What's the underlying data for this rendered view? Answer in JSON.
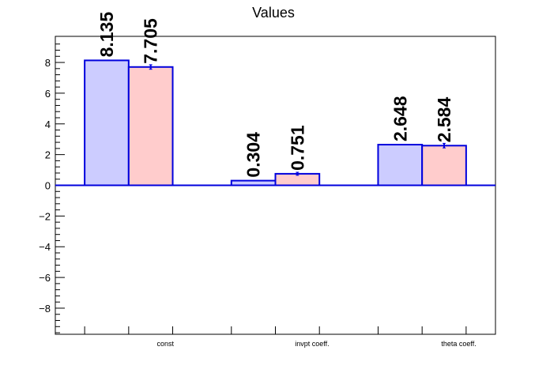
{
  "chart_data": {
    "type": "bar",
    "title": "Values",
    "xlabel": "",
    "ylabel": "",
    "categories": [
      "const",
      "invpt coeff.",
      "theta coeff."
    ],
    "series": [
      {
        "values": [
          8.135,
          0.304,
          2.648
        ],
        "labels": [
          "8.135",
          "0.304",
          "2.648"
        ],
        "errors": [
          0,
          0,
          0
        ],
        "fill": "#ccccff",
        "stroke": "#0000dd"
      },
      {
        "values": [
          7.705,
          0.751,
          2.584
        ],
        "labels": [
          "7.705",
          "0.751",
          "2.584"
        ],
        "errors": [
          0.15,
          0.1,
          0.15
        ],
        "fill": "#ffcccc",
        "stroke": "#0000dd"
      }
    ],
    "ylim": [
      -9.7,
      9.7
    ],
    "yticks": [
      -8,
      -6,
      -4,
      -2,
      0,
      2,
      4,
      6,
      8
    ],
    "ytick_labels": [
      "−8",
      "−6",
      "−4",
      "−2",
      "0",
      "2",
      "4",
      "6",
      "8"
    ],
    "grid": false,
    "legend": "none",
    "zero_line": true
  }
}
